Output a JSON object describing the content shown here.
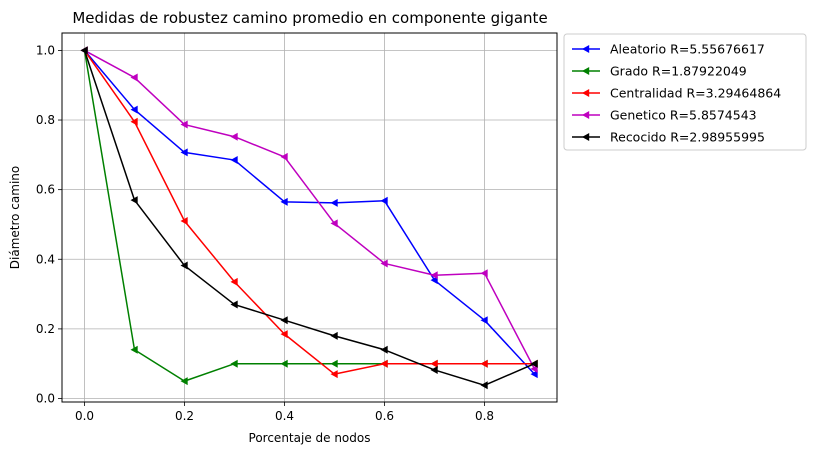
{
  "chart_data": {
    "type": "line",
    "title": "Medidas de robustez camino promedio en componente gigante",
    "xlabel": "Porcentaje de nodos",
    "ylabel": "Diámetro camino",
    "xlim": [
      -0.045,
      0.945
    ],
    "ylim": [
      -0.01,
      1.05
    ],
    "xticks": [
      0.0,
      0.2,
      0.4,
      0.6,
      0.8
    ],
    "xtick_labels": [
      "0.0",
      "0.2",
      "0.4",
      "0.6",
      "0.8"
    ],
    "yticks": [
      0.0,
      0.2,
      0.4,
      0.6,
      0.8,
      1.0
    ],
    "ytick_labels": [
      "0.0",
      "0.2",
      "0.4",
      "0.6",
      "0.8",
      "1.0"
    ],
    "grid": true,
    "legend_position": "outside-right-top",
    "marker": "triangle-left",
    "x": [
      0.0,
      0.1,
      0.2,
      0.3,
      0.4,
      0.5,
      0.6,
      0.7,
      0.8,
      0.9
    ],
    "series": [
      {
        "name": "Aleatorio R=5.55676617",
        "color": "#0000ff",
        "values": [
          1.0,
          0.83,
          0.707,
          0.685,
          0.565,
          0.562,
          0.568,
          0.34,
          0.225,
          0.07
        ]
      },
      {
        "name": "Grado R=1.87922049",
        "color": "#008000",
        "values": [
          1.0,
          0.14,
          0.05,
          0.1,
          0.1,
          0.1,
          0.1,
          0.1,
          0.1,
          0.1
        ]
      },
      {
        "name": "Centralidad R=3.29464864",
        "color": "#ff0000",
        "values": [
          1.0,
          0.795,
          0.51,
          0.335,
          0.185,
          0.07,
          0.1,
          0.1,
          0.1,
          0.1
        ]
      },
      {
        "name": "Genetico R=5.8574543",
        "color": "#bf00bf",
        "values": [
          1.0,
          0.922,
          0.787,
          0.752,
          0.694,
          0.503,
          0.388,
          0.354,
          0.36,
          0.085
        ]
      },
      {
        "name": "Recocido R=2.98955995",
        "color": "#000000",
        "values": [
          1.0,
          0.57,
          0.382,
          0.27,
          0.225,
          0.18,
          0.14,
          0.082,
          0.038,
          0.1
        ]
      }
    ]
  }
}
